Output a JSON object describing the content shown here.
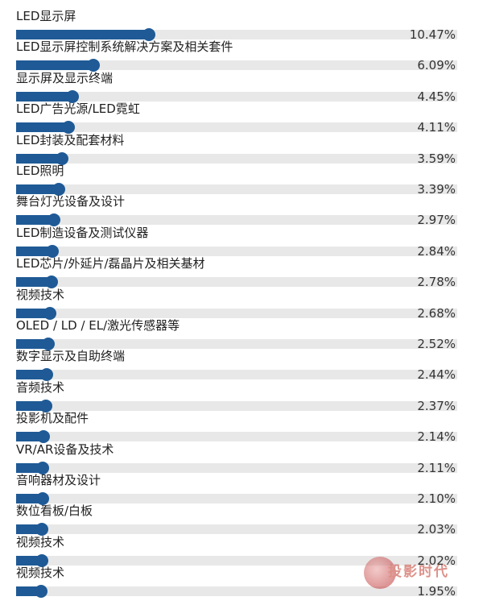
{
  "chart_data": {
    "type": "bar",
    "orientation": "horizontal",
    "categories": [
      "LED显示屏",
      "LED显示屏控制系统解决方案及相关套件",
      "显示屏及显示终端",
      "LED广告光源/LED霓虹",
      "LED封装及配套材料",
      "LED照明",
      "舞台灯光设备及设计",
      "LED制造设备及测试仪器",
      "LED芯片/外延片/磊晶片及相关基材",
      "视频技术",
      "OLED / LD / EL/激光传感器等",
      "数字显示及自助终端",
      "音频技术",
      "投影机及配件",
      "VR/AR设备及技术",
      "音响器材及设计",
      "数位看板/白板",
      "视频技术",
      "视频技术"
    ],
    "values": [
      10.47,
      6.09,
      4.45,
      4.11,
      3.59,
      3.39,
      2.97,
      2.84,
      2.78,
      2.68,
      2.52,
      2.44,
      2.37,
      2.14,
      2.11,
      2.1,
      2.03,
      2.02,
      1.95
    ],
    "value_labels": [
      "10.47%",
      "6.09%",
      "4.45%",
      "4.11%",
      "3.59%",
      "3.39%",
      "2.97%",
      "2.84%",
      "2.78%",
      "2.68%",
      "2.52%",
      "2.44%",
      "2.37%",
      "2.14%",
      "2.11%",
      "2.10%",
      "2.03%",
      "2.02%",
      "1.95%"
    ],
    "unit": "%",
    "title": "",
    "xlabel": "",
    "ylabel": "",
    "grid": false,
    "legend": "none",
    "colors": {
      "fill": "#1f5a96",
      "track": "#e8e8e8"
    }
  },
  "watermark": {
    "text": "投影时代"
  }
}
